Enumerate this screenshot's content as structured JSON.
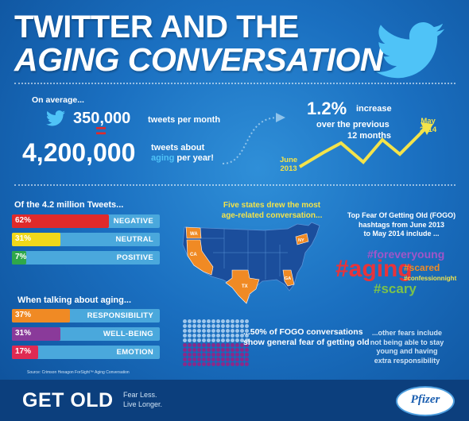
{
  "title_line1": "TWITTER AND THE",
  "title_line2": "AGING CONVERSATION",
  "on_average": "On average...",
  "tweets_per_month_value": "350,000",
  "tweets_per_month_label": "tweets per month",
  "equals": "=",
  "tweets_year_value": "4,200,000",
  "tweets_year_label_a": "tweets about",
  "tweets_year_label_aging": "aging",
  "tweets_year_label_b": "per year!",
  "increase_value": "1.2%",
  "increase_label1": "increase",
  "increase_label2": "over the previous",
  "increase_label3": "12 months",
  "start_label1": "June",
  "start_label2": "2013",
  "end_label1": "May",
  "end_label2": "2014",
  "sentiment_title": "Of the 4.2 million Tweets...",
  "sentiment": [
    {
      "pct": "62%",
      "label": "NEGATIVE",
      "value": 62,
      "color": "#e02a2a"
    },
    {
      "pct": "31%",
      "label": "NEUTRAL",
      "value": 31,
      "color": "#f0d81a"
    },
    {
      "pct": "7%",
      "label": "POSITIVE",
      "value": 7,
      "color": "#2fa84a"
    }
  ],
  "talking_title": "When talking about aging...",
  "talking": [
    {
      "pct": "37%",
      "label": "RESPONSIBILITY",
      "value": 37,
      "color": "#f08a24"
    },
    {
      "pct": "31%",
      "label": "WELL-BEING",
      "value": 31,
      "color": "#8a3a9a"
    },
    {
      "pct": "17%",
      "label": "EMOTION",
      "value": 17,
      "color": "#e02a52"
    }
  ],
  "states_line1": "Five states drew the most",
  "states_line2": "age-related conversation...",
  "state_labels": [
    "WA",
    "CA",
    "TX",
    "GA",
    "NY"
  ],
  "fogo_line1": "Top Fear Of Getting Old (FOGO)",
  "fogo_line2": "hashtags from June 2013",
  "fogo_line3": "to May 2014 include ...",
  "hashtags": {
    "foreveryoung": "#foreveryoung",
    "aging": "#aging",
    "scared": "#scared",
    "confessionnight": "#confessionnight",
    "scary": "#scary"
  },
  "fogo_pct_line1": "...50% of FOGO conversations",
  "fogo_pct_line2": "show general fear of getting old",
  "other_fears_line1": "...other fears include",
  "other_fears_line2": "not being able to stay",
  "other_fears_line3": "young and having",
  "other_fears_line4": "extra responsibility",
  "dot_grid": {
    "filled_fraction": 0.5,
    "top_color": "#9fc7ec",
    "bottom_color": "#8a2a8a"
  },
  "source": "Source: Crimson Hexagon ForSight™ Aging Conversation",
  "footer_brand": "GET OLD",
  "footer_tag1": "Fear Less.",
  "footer_tag2": "Live Longer.",
  "footer_company": "Pfizer",
  "colors": {
    "twitter_blue": "#4fc3f7",
    "yellow": "#f3e34a",
    "orange": "#f08a24",
    "red_hashtag": "#e8333a",
    "purple_hashtag": "#a155c8"
  }
}
